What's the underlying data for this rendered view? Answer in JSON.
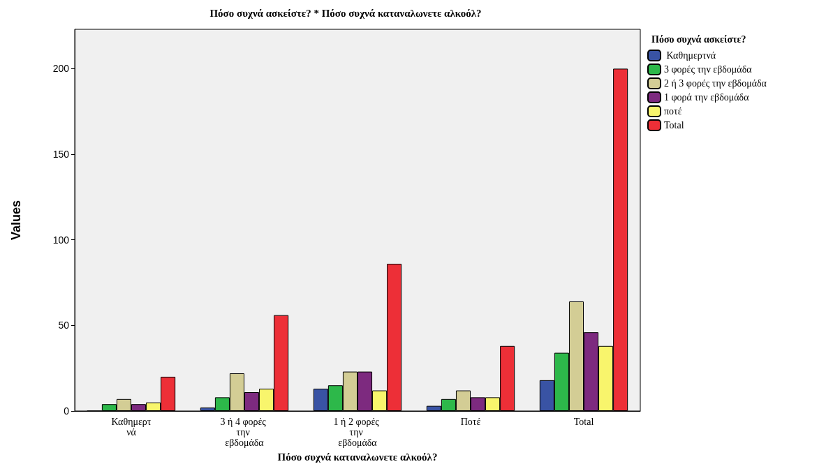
{
  "chart_data": {
    "type": "bar",
    "title": "Πόσο συχνά ασκείστε? * Πόσο συχνά καταναλωνετε αλκοόλ?",
    "xlabel": "Πόσο συχνά καταναλωνετε αλκοόλ?",
    "ylabel": "Values",
    "legend_title": "Πόσο συχνά ασκείστε?",
    "categories": [
      "Καθημερτνά",
      "3 ή 4 φορές την εβδομάδα",
      "1 ή 2 φορές την εβδομάδα",
      "Ποτέ",
      "Total"
    ],
    "series": [
      {
        "name": " Καθημερτνά",
        "color": "#3953a4",
        "values": [
          0,
          2,
          13,
          3,
          18
        ]
      },
      {
        "name": "3 φορές την εβδομάδα",
        "color": "#2db84a",
        "values": [
          4,
          8,
          15,
          7,
          34
        ]
      },
      {
        "name": "2 ή 3 φορές την εβδομάδα",
        "color": "#d3cd95",
        "values": [
          7,
          22,
          23,
          12,
          64
        ]
      },
      {
        "name": "1 φορά την εβδομάδα",
        "color": "#7d2a7f",
        "values": [
          4,
          11,
          23,
          8,
          46
        ]
      },
      {
        "name": "ποτέ",
        "color": "#f8f56c",
        "values": [
          5,
          13,
          12,
          8,
          38
        ]
      },
      {
        "name": "Total",
        "color": "#ed2f37",
        "values": [
          20,
          56,
          86,
          38,
          200
        ]
      }
    ],
    "ylim": [
      0,
      223
    ],
    "yticks": [
      0,
      50,
      100,
      150,
      200
    ],
    "grid": false,
    "legend": "top right"
  }
}
